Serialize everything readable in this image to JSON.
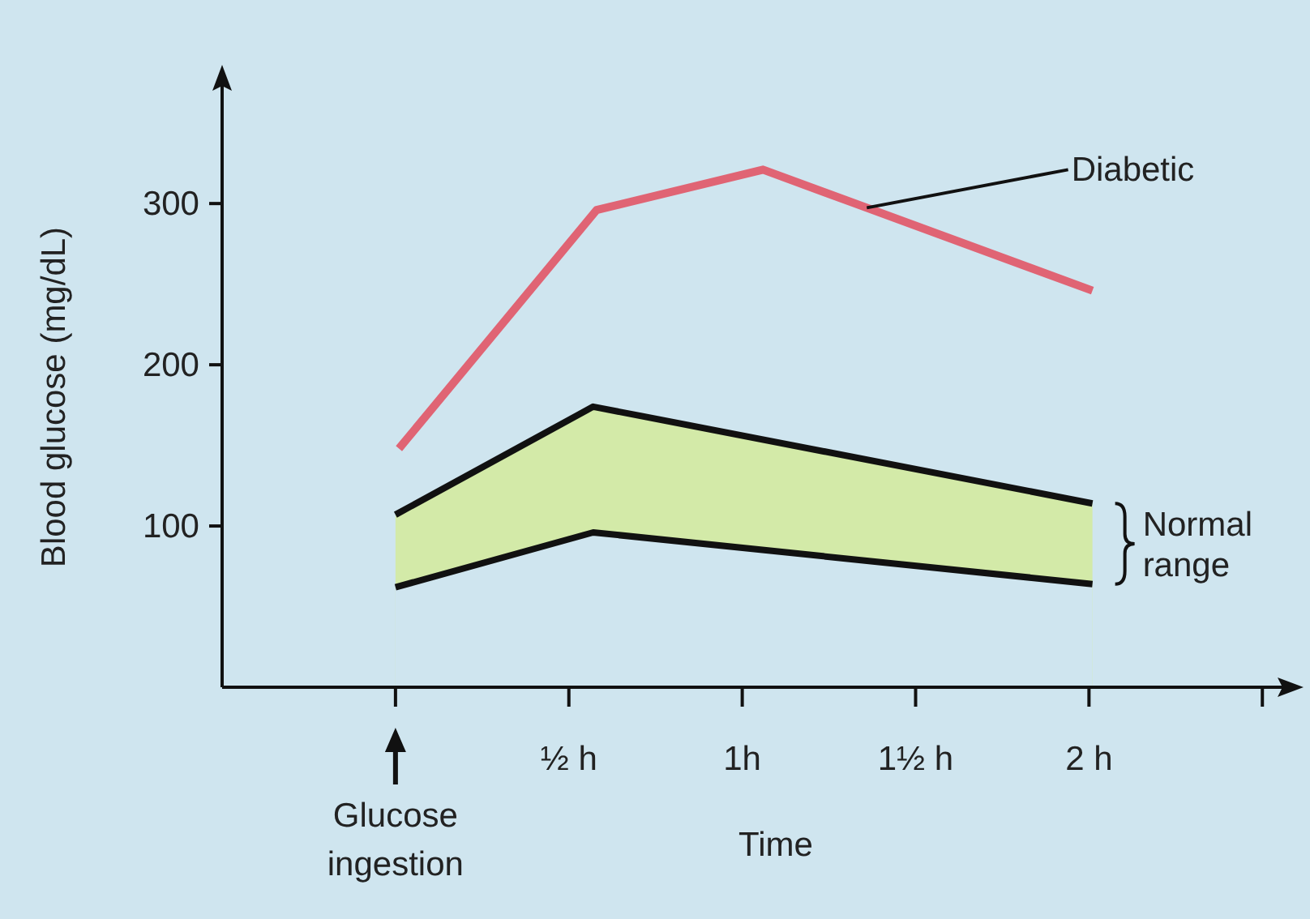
{
  "chart_data": {
    "type": "line",
    "xlabel": "Time",
    "ylabel": "Blood glucose (mg/dL)",
    "xlim": [
      -0.5,
      2.6
    ],
    "ylim": [
      0,
      380
    ],
    "xticks": [
      {
        "value": 0,
        "label": null
      },
      {
        "value": 0.5,
        "label": "½ h"
      },
      {
        "value": 1,
        "label": "1h"
      },
      {
        "value": 1.5,
        "label": "1½ h"
      },
      {
        "value": 2,
        "label": "2 h"
      },
      {
        "value": 2.5,
        "label": null
      }
    ],
    "yticks": [
      100,
      200,
      300
    ],
    "series": [
      {
        "name": "Diabetic",
        "color": "#e06474",
        "x": [
          0.01,
          0.58,
          1.06,
          2.01
        ],
        "values": [
          148,
          296,
          321,
          246
        ]
      },
      {
        "name": "Normal range",
        "type": "area",
        "color": "#d3eaa8",
        "x": [
          0,
          0.57,
          2.01
        ],
        "values": [
          107,
          174,
          114
        ]
      },
      {
        "type": "area",
        "color": "#cfe5ef",
        "x": [
          0,
          0.57,
          2.01
        ],
        "values": [
          62,
          96,
          64
        ]
      }
    ],
    "annotations": [
      "Glucose ingestion"
    ],
    "grid": false,
    "legend": "right",
    "marker": "none",
    "line_style": "solid"
  }
}
